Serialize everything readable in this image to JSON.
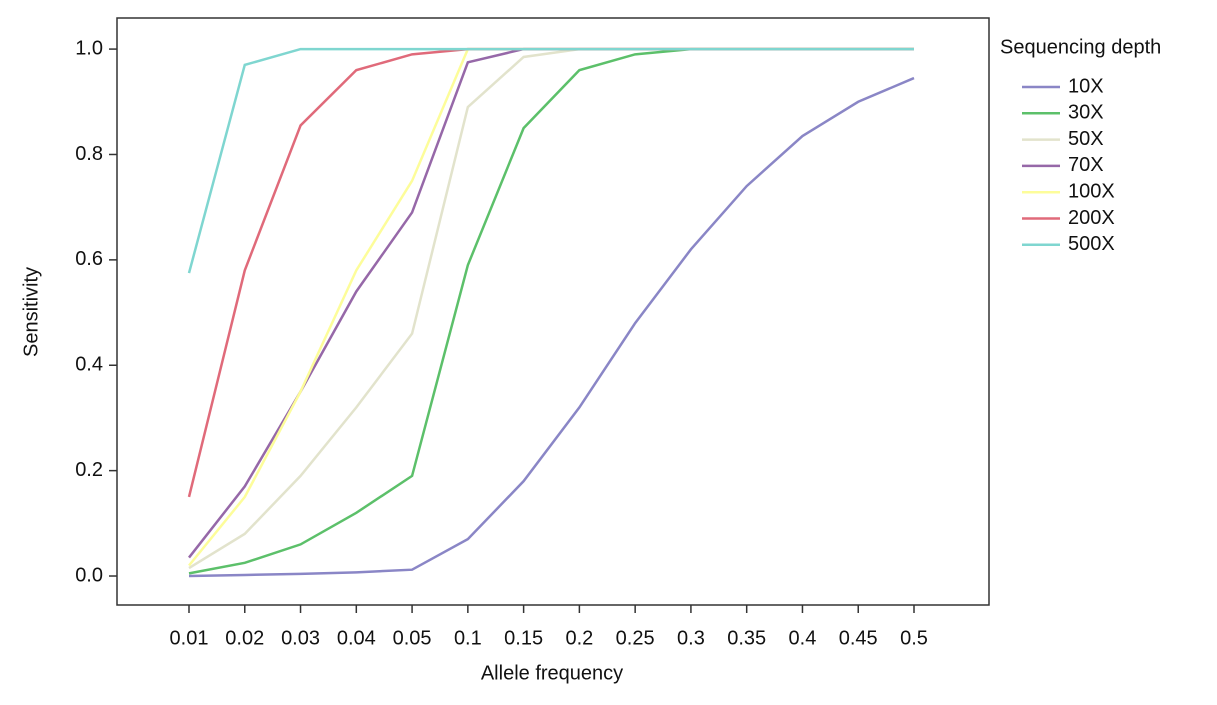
{
  "chart_data": {
    "type": "line",
    "x_label": "Allele frequency",
    "y_label": "Sensitivity",
    "legend_title": "Sequencing depth",
    "legend_position": "right",
    "categories": [
      "0.01",
      "0.02",
      "0.03",
      "0.04",
      "0.05",
      "0.1",
      "0.15",
      "0.2",
      "0.25",
      "0.3",
      "0.35",
      "0.4",
      "0.45",
      "0.5"
    ],
    "ylim": [
      -0.055,
      1.059
    ],
    "yticks": [
      {
        "value": 0,
        "label": "0.0"
      },
      0.2,
      0.4,
      0.6,
      0.8,
      {
        "value": 1,
        "label": "1.0"
      }
    ],
    "series": [
      {
        "name": "10X",
        "color": "#8a86c6",
        "values": [
          0.0,
          0.002,
          0.004,
          0.007,
          0.012,
          0.07,
          0.18,
          0.32,
          0.48,
          0.62,
          0.74,
          0.835,
          0.9,
          0.945
        ]
      },
      {
        "name": "30X",
        "color": "#5cc06a",
        "values": [
          0.005,
          0.025,
          0.06,
          0.12,
          0.19,
          0.59,
          0.85,
          0.96,
          0.99,
          1.0,
          1.0,
          1.0,
          1.0,
          1.0
        ]
      },
      {
        "name": "50X",
        "color": "#e2e3cc",
        "values": [
          0.015,
          0.08,
          0.19,
          0.32,
          0.46,
          0.89,
          0.985,
          1.0,
          1.0,
          1.0,
          1.0,
          1.0,
          1.0,
          1.0
        ]
      },
      {
        "name": "70X",
        "color": "#9668a8",
        "values": [
          0.035,
          0.17,
          0.35,
          0.54,
          0.69,
          0.975,
          1.0,
          1.0,
          1.0,
          1.0,
          1.0,
          1.0,
          1.0,
          1.0
        ]
      },
      {
        "name": "100X",
        "color": "#fdfd9a",
        "values": [
          0.02,
          0.15,
          0.35,
          0.58,
          0.75,
          1.0,
          1.0,
          1.0,
          1.0,
          1.0,
          1.0,
          1.0,
          1.0,
          1.0
        ]
      },
      {
        "name": "200X",
        "color": "#e06a7a",
        "values": [
          0.15,
          0.58,
          0.855,
          0.96,
          0.99,
          1.0,
          1.0,
          1.0,
          1.0,
          1.0,
          1.0,
          1.0,
          1.0,
          1.0
        ]
      },
      {
        "name": "500X",
        "color": "#7fd6d0",
        "values": [
          0.575,
          0.97,
          1.0,
          1.0,
          1.0,
          1.0,
          1.0,
          1.0,
          1.0,
          1.0,
          1.0,
          1.0,
          1.0,
          1.0
        ]
      }
    ]
  }
}
